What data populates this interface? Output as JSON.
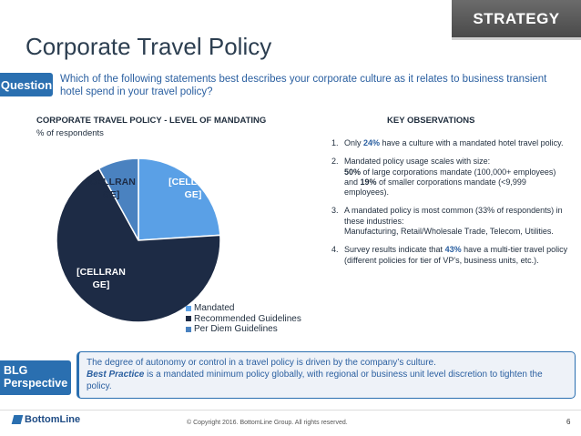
{
  "header": {
    "strategy_label": "STRATEGY",
    "title": "Corporate Travel Policy"
  },
  "question": {
    "tag": "Question",
    "text": "Which of the following statements best describes your corporate culture as it relates to business transient hotel spend in your travel policy?"
  },
  "chart_data": {
    "type": "pie",
    "title": "CORPORATE TRAVEL POLICY - LEVEL OF MANDATING",
    "subtitle": "% of respondents",
    "categories": [
      "Mandated",
      "Recommended Guidelines",
      "Per Diem Guidelines"
    ],
    "values": [
      24,
      68,
      8
    ],
    "colors": [
      "#5aa0e6",
      "#1d2b45",
      "#4a82c0"
    ],
    "slice_labels": [
      "[CELLRAN GE]",
      "[CELLRAN GE]",
      "[CELLRAN GE]"
    ]
  },
  "observations": {
    "title": "KEY OBSERVATIONS",
    "items": [
      {
        "num": "1.",
        "pre": "Only ",
        "bold": "24%",
        "post": " have a culture with a mandated hotel travel policy."
      },
      {
        "num": "2.",
        "text": "Mandated policy usage scales with size:",
        "line2_bold_a": "50%",
        "line2_mid": " of large corporations mandate (100,000+ employees) and ",
        "line2_bold_b": "19%",
        "line2_post": " of smaller corporations mandate (<9,999 employees)."
      },
      {
        "num": "3.",
        "text": "A mandated policy is most common (33% of respondents) in these industries:",
        "line2": "Manufacturing, Retail/Wholesale Trade, Telecom, Utilities."
      },
      {
        "num": "4.",
        "pre": "Survey results indicate that ",
        "bold": "43%",
        "post": " have a multi-tier travel policy (different policies for tier of VP's, business units, etc.)."
      }
    ]
  },
  "perspective": {
    "tag_line1": "BLG",
    "tag_line2": "Perspective",
    "line1": "The degree of autonomy or control in a travel policy is driven by the company’s culture.",
    "bp_label": "Best Practice",
    "bp_text": " is a mandated minimum policy globally, with regional or business unit level discretion to tighten the policy."
  },
  "footer": {
    "logo_text": "BottomLine",
    "copyright": "© Copyright 2016. BottomLine Group. All rights reserved.",
    "page": "6"
  }
}
